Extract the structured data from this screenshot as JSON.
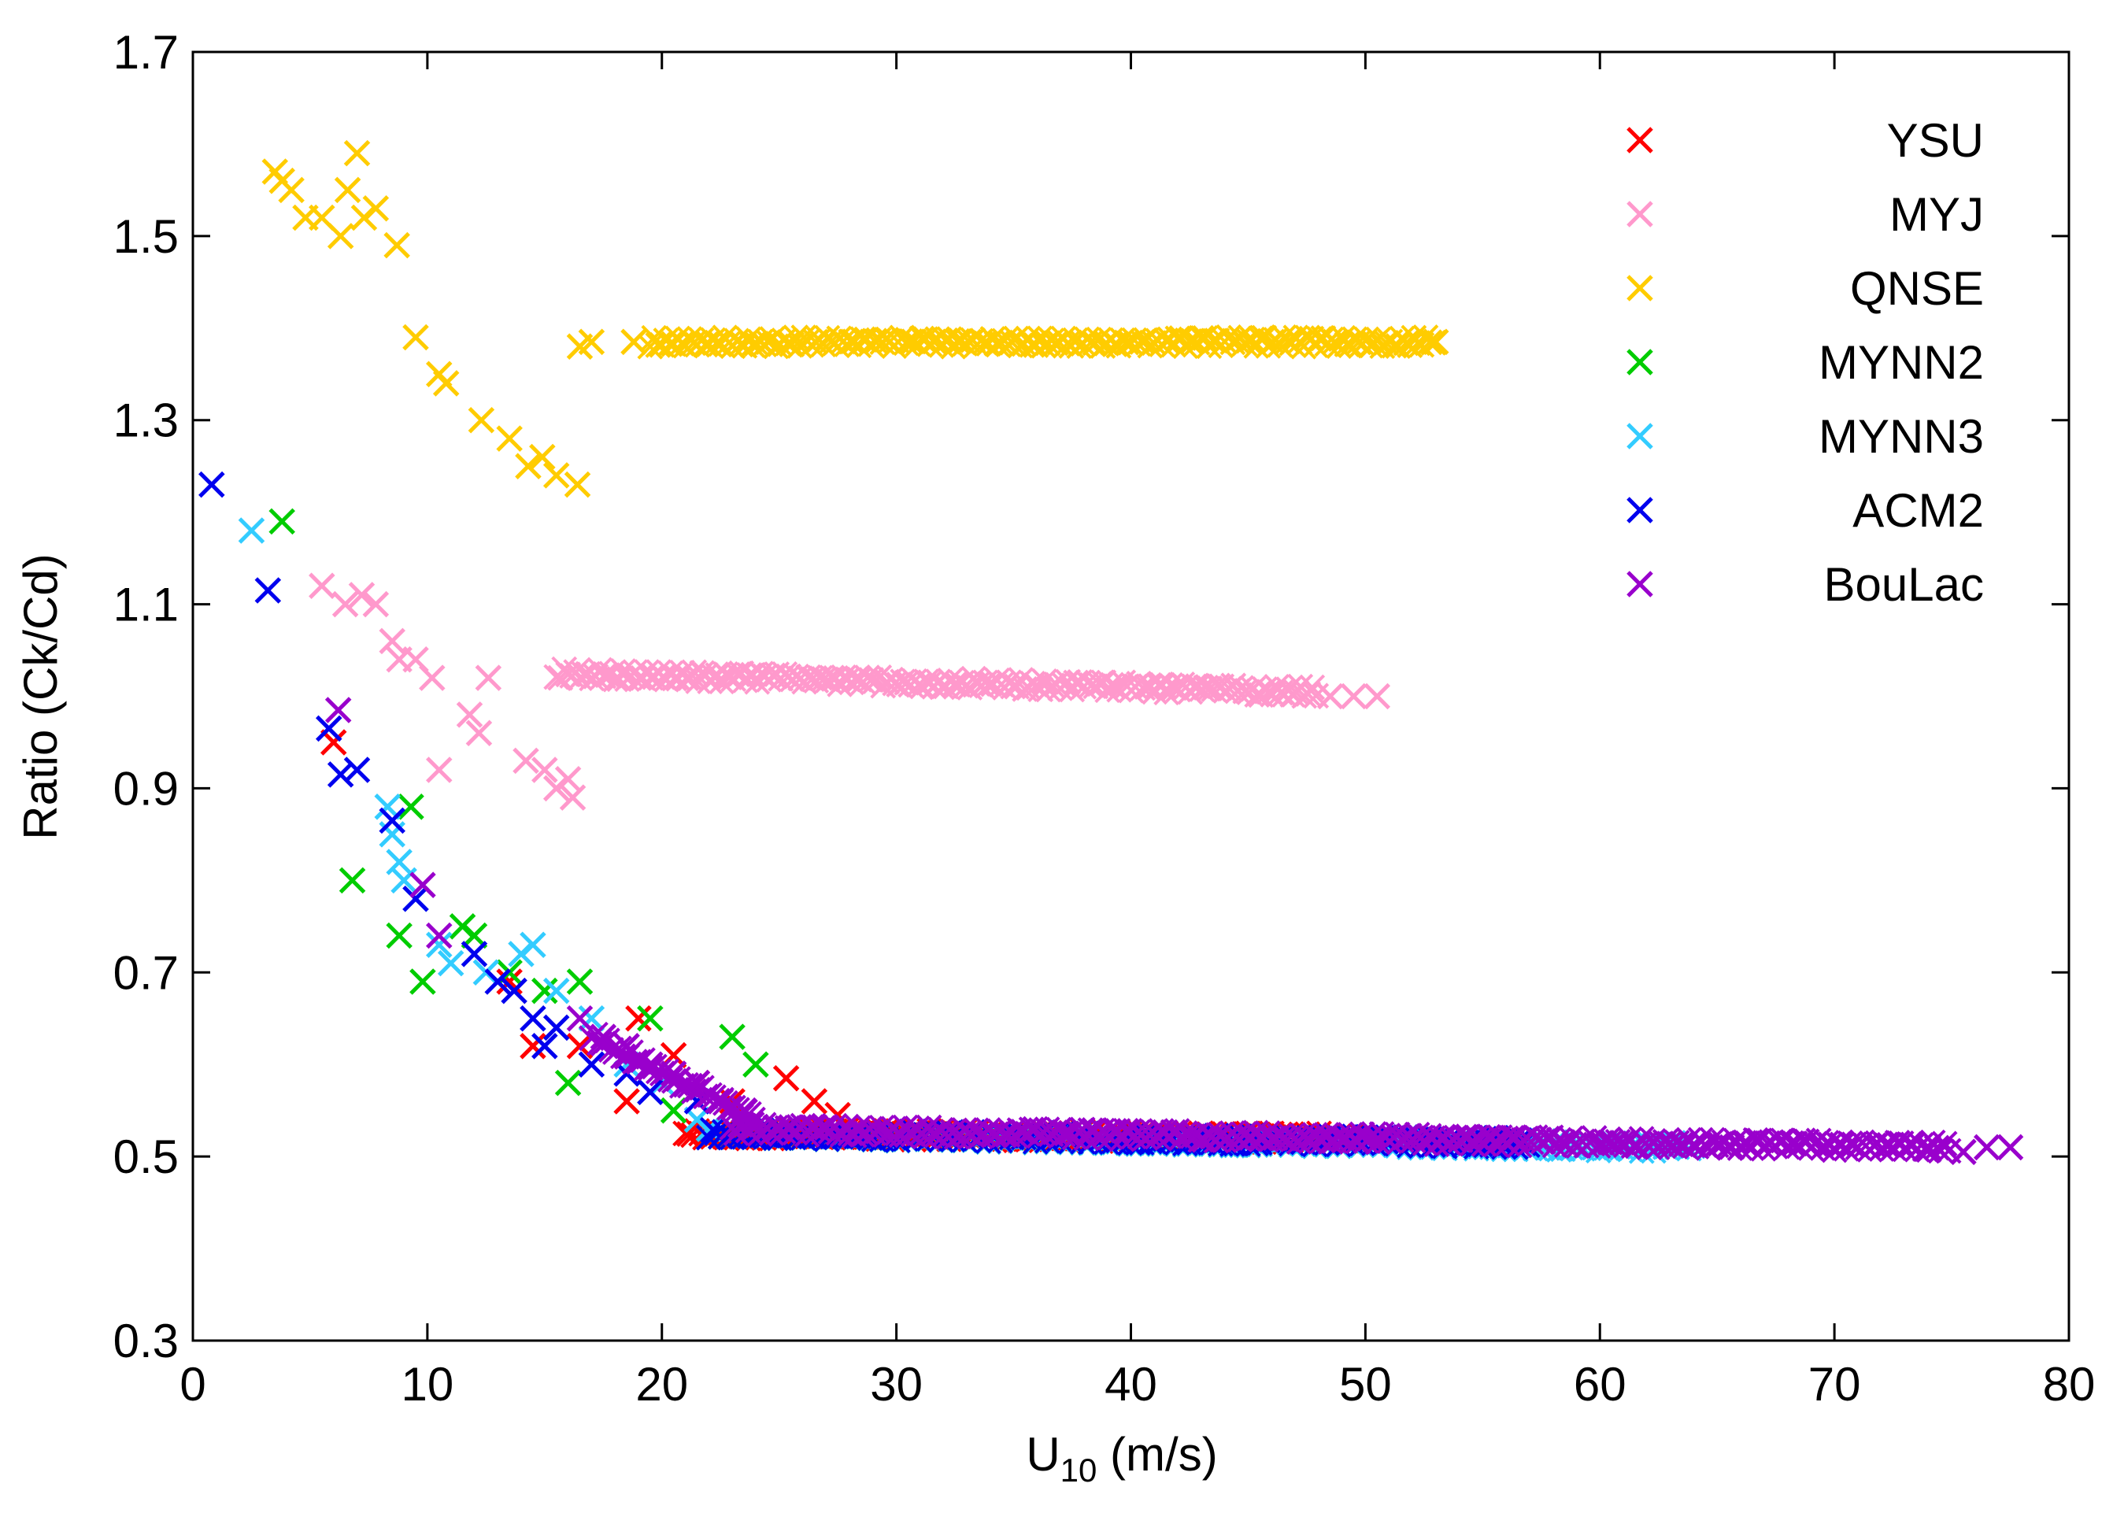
{
  "chart_data": {
    "type": "scatter",
    "title": "",
    "xlabel": "U",
    "xlabel_subscript": "10",
    "xlabel_unit": " (m/s)",
    "ylabel": "Ratio (Ck/Cd)",
    "xlim": [
      0,
      80
    ],
    "ylim": [
      0.3,
      1.7
    ],
    "xticks": [
      0,
      10,
      20,
      30,
      40,
      50,
      60,
      70,
      80
    ],
    "xtick_labels": [
      "0",
      "10",
      "20",
      "30",
      "40",
      "50",
      "60",
      "70",
      "80"
    ],
    "yticks": [
      0.3,
      0.5,
      0.7,
      0.9,
      1.1,
      1.3,
      1.5,
      1.7
    ],
    "ytick_labels": [
      "0.3",
      "0.5",
      "0.7",
      "0.9",
      "1.1",
      "1.3",
      "1.5",
      "1.7"
    ],
    "legend_position": "top-right",
    "series": [
      {
        "name": "YSU",
        "color": "#ff0000",
        "points": [
          [
            6.0,
            0.95
          ],
          [
            13.5,
            0.69
          ],
          [
            14.5,
            0.62
          ],
          [
            16.5,
            0.62
          ],
          [
            18.5,
            0.56
          ],
          [
            19.0,
            0.65
          ],
          [
            20.5,
            0.61
          ],
          [
            21.5,
            0.58
          ],
          [
            23.0,
            0.56
          ],
          [
            25.3,
            0.585
          ],
          [
            26.5,
            0.56
          ],
          [
            27.5,
            0.545
          ]
        ],
        "bands": [
          [
            21,
            50,
            0.525,
            0.52
          ]
        ]
      },
      {
        "name": "MYJ",
        "color": "#ff99cc",
        "points": [
          [
            5.5,
            1.12
          ],
          [
            6.5,
            1.1
          ],
          [
            7.2,
            1.11
          ],
          [
            7.8,
            1.1
          ],
          [
            8.5,
            1.06
          ],
          [
            8.8,
            1.04
          ],
          [
            9.5,
            1.04
          ],
          [
            10.2,
            1.02
          ],
          [
            10.5,
            0.92
          ],
          [
            11.8,
            0.98
          ],
          [
            12.2,
            0.96
          ],
          [
            12.6,
            1.02
          ],
          [
            14.2,
            0.93
          ],
          [
            15.0,
            0.92
          ],
          [
            15.5,
            0.9
          ],
          [
            16.0,
            0.91
          ],
          [
            16.2,
            0.89
          ],
          [
            48.5,
            1.0
          ],
          [
            49.5,
            1.0
          ],
          [
            50.5,
            1.0
          ]
        ],
        "bands": [
          [
            15.5,
            48,
            1.025,
            1.005
          ]
        ]
      },
      {
        "name": "QNSE",
        "color": "#ffcc00",
        "points": [
          [
            3.5,
            1.57
          ],
          [
            3.8,
            1.56
          ],
          [
            4.2,
            1.55
          ],
          [
            4.8,
            1.52
          ],
          [
            5.5,
            1.52
          ],
          [
            6.3,
            1.5
          ],
          [
            6.6,
            1.55
          ],
          [
            7.0,
            1.59
          ],
          [
            7.3,
            1.52
          ],
          [
            7.8,
            1.53
          ],
          [
            8.7,
            1.49
          ],
          [
            9.5,
            1.39
          ],
          [
            10.5,
            1.35
          ],
          [
            10.8,
            1.34
          ],
          [
            12.3,
            1.3
          ],
          [
            13.5,
            1.28
          ],
          [
            14.3,
            1.25
          ],
          [
            14.9,
            1.26
          ],
          [
            15.5,
            1.24
          ],
          [
            16.4,
            1.23
          ],
          [
            16.5,
            1.38
          ],
          [
            17.0,
            1.385
          ],
          [
            18.8,
            1.385
          ],
          [
            53.0,
            1.385
          ]
        ],
        "bands": [
          [
            19.5,
            53,
            1.385,
            1.385
          ]
        ]
      },
      {
        "name": "MYNN2",
        "color": "#00cc00",
        "points": [
          [
            3.8,
            1.19
          ],
          [
            6.8,
            0.8
          ],
          [
            8.8,
            0.74
          ],
          [
            9.3,
            0.88
          ],
          [
            9.8,
            0.69
          ],
          [
            11.5,
            0.75
          ],
          [
            12.0,
            0.74
          ],
          [
            13.5,
            0.7
          ],
          [
            15.0,
            0.68
          ],
          [
            16.0,
            0.58
          ],
          [
            16.5,
            0.69
          ],
          [
            19.5,
            0.65
          ],
          [
            20.5,
            0.55
          ],
          [
            23.0,
            0.63
          ],
          [
            24.0,
            0.6
          ]
        ],
        "bands": [
          [
            22,
            50,
            0.525,
            0.515
          ]
        ]
      },
      {
        "name": "MYNN3",
        "color": "#33ccff",
        "points": [
          [
            2.5,
            1.18
          ],
          [
            8.3,
            0.88
          ],
          [
            8.5,
            0.85
          ],
          [
            8.8,
            0.82
          ],
          [
            9.0,
            0.8
          ],
          [
            9.5,
            0.78
          ],
          [
            10.5,
            0.73
          ],
          [
            11.0,
            0.71
          ],
          [
            12.5,
            0.7
          ],
          [
            14.0,
            0.72
          ],
          [
            14.5,
            0.73
          ],
          [
            15.5,
            0.68
          ],
          [
            17.0,
            0.65
          ],
          [
            18.5,
            0.6
          ],
          [
            20.0,
            0.58
          ],
          [
            21.5,
            0.54
          ],
          [
            22.0,
            0.53
          ]
        ],
        "bands": [
          [
            22,
            64,
            0.525,
            0.51
          ]
        ]
      },
      {
        "name": "ACM2",
        "color": "#0000ee",
        "points": [
          [
            0.8,
            1.23
          ],
          [
            3.2,
            1.115
          ],
          [
            5.8,
            0.965
          ],
          [
            6.3,
            0.915
          ],
          [
            7.0,
            0.92
          ],
          [
            8.5,
            0.865
          ],
          [
            9.5,
            0.78
          ],
          [
            12.0,
            0.72
          ],
          [
            13.0,
            0.69
          ],
          [
            13.7,
            0.68
          ],
          [
            14.5,
            0.65
          ],
          [
            15.0,
            0.62
          ],
          [
            15.5,
            0.64
          ],
          [
            17.0,
            0.6
          ],
          [
            18.5,
            0.59
          ],
          [
            19.5,
            0.57
          ],
          [
            21.5,
            0.56
          ]
        ],
        "bands": [
          [
            22,
            57,
            0.525,
            0.515
          ]
        ]
      },
      {
        "name": "BouLac",
        "color": "#9900cc",
        "points": [
          [
            6.2,
            0.985
          ],
          [
            9.8,
            0.795
          ],
          [
            10.5,
            0.74
          ],
          [
            16.5,
            0.65
          ],
          [
            17.5,
            0.63
          ],
          [
            18.5,
            0.62
          ],
          [
            19.5,
            0.6
          ],
          [
            20.5,
            0.59
          ],
          [
            21.5,
            0.58
          ],
          [
            22.5,
            0.56
          ],
          [
            23.5,
            0.55
          ],
          [
            74.0,
            0.51
          ],
          [
            75.5,
            0.505
          ],
          [
            76.5,
            0.51
          ],
          [
            77.5,
            0.51
          ]
        ],
        "bands": [
          [
            17,
            24,
            0.63,
            0.54
          ],
          [
            23,
            75,
            0.53,
            0.51
          ]
        ]
      }
    ]
  }
}
